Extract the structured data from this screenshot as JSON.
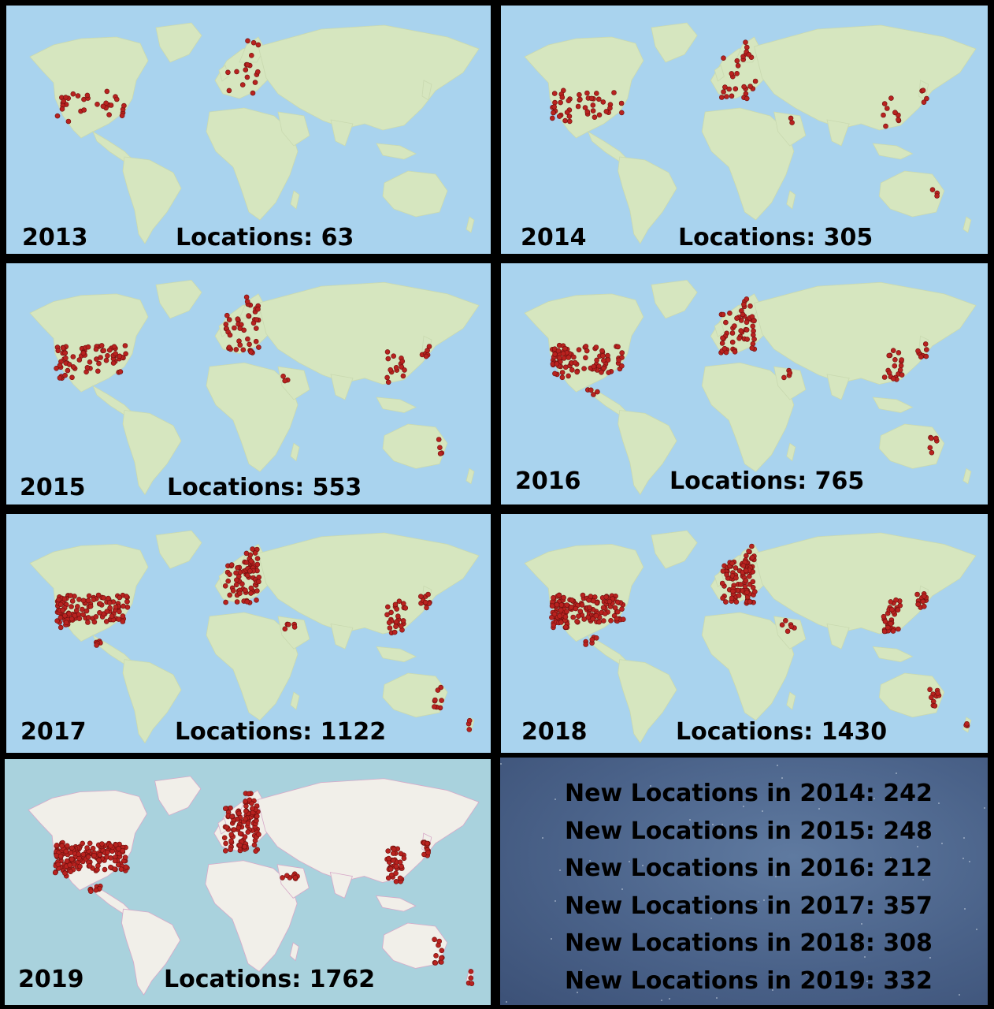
{
  "panels": [
    {
      "year": "2013",
      "locations_label": "Locations: 63",
      "locations": 63,
      "style": "terrain"
    },
    {
      "year": "2014",
      "locations_label": "Locations: 305",
      "locations": 305,
      "style": "terrain"
    },
    {
      "year": "2015",
      "locations_label": "Locations: 553",
      "locations": 553,
      "style": "terrain"
    },
    {
      "year": "2016",
      "locations_label": "Locations: 765",
      "locations": 765,
      "style": "terrain"
    },
    {
      "year": "2017",
      "locations_label": "Locations: 1122",
      "locations": 1122,
      "style": "terrain"
    },
    {
      "year": "2018",
      "locations_label": "Locations: 1430",
      "locations": 1430,
      "style": "terrain"
    },
    {
      "year": "2019",
      "locations_label": "Locations: 1762",
      "locations": 1762,
      "style": "political"
    }
  ],
  "new_locations": [
    "New Locations in 2014: 242",
    "New Locations in 2015: 248",
    "New Locations in 2016: 212",
    "New Locations in 2017: 357",
    "New Locations in 2018: 308",
    "New Locations in 2019: 332"
  ],
  "colors": {
    "ocean_terrain": "#a9d3ee",
    "land_terrain": "#d6e6bf",
    "ocean_political": "#a9d2dd",
    "land_political": "#f1efe9",
    "marker": "#b8221f",
    "summary_bg": "#4a6289"
  }
}
